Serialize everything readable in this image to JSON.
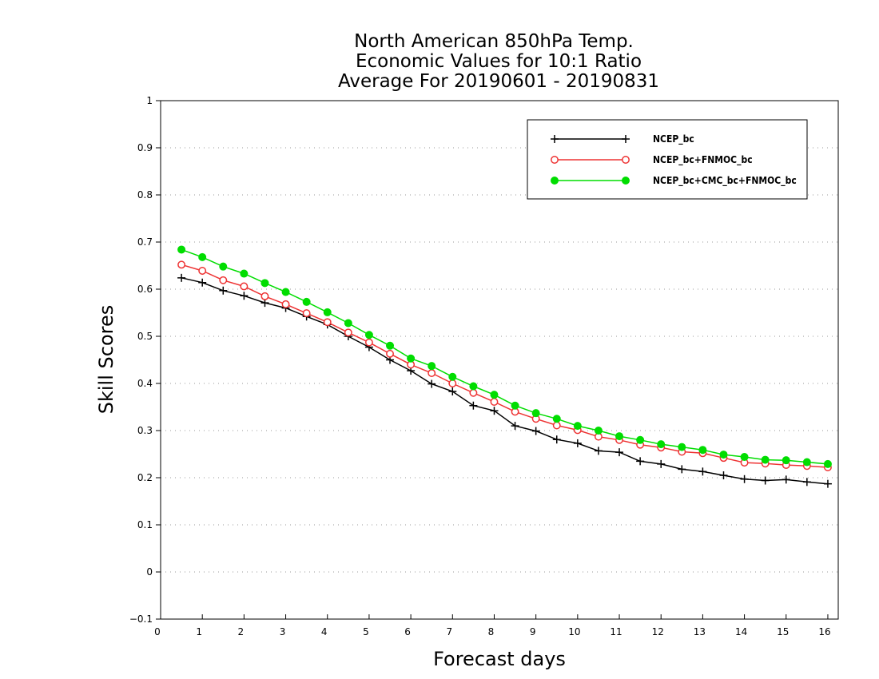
{
  "chart_data": {
    "type": "line",
    "title_lines": [
      "North American 850hPa Temp.",
      "Economic Values for 10:1 Ratio",
      "Average For 20190601 - 20190831"
    ],
    "xlabel": "Forecast days",
    "ylabel": "Skill Scores",
    "xlim": [
      0,
      16.25
    ],
    "ylim": [
      -0.1,
      1
    ],
    "x_ticks": [
      0,
      1,
      2,
      3,
      4,
      5,
      6,
      7,
      8,
      9,
      10,
      11,
      12,
      13,
      14,
      15,
      16
    ],
    "y_ticks": [
      -0.1,
      0,
      0.1,
      0.2,
      0.3,
      0.4,
      0.5,
      0.6,
      0.7,
      0.8,
      0.9,
      1
    ],
    "y_tick_labels": [
      "−0.1",
      "0",
      "0.1",
      "0.2",
      "0.3",
      "0.4",
      "0.5",
      "0.6",
      "0.7",
      "0.8",
      "0.9",
      "1"
    ],
    "grid": "horizontal-dotted",
    "legend_position": "top-right",
    "x": [
      0.5,
      1,
      1.5,
      2,
      2.5,
      3,
      3.5,
      4,
      4.5,
      5,
      5.5,
      6,
      6.5,
      7,
      7.5,
      8,
      8.5,
      9,
      9.5,
      10,
      10.5,
      11,
      11.5,
      12,
      12.5,
      13,
      13.5,
      14,
      14.5,
      15,
      15.5,
      16
    ],
    "series": [
      {
        "name": "NCEP_bc",
        "color": "#000000",
        "marker": "plus",
        "values": [
          0.624,
          0.614,
          0.597,
          0.586,
          0.571,
          0.56,
          0.542,
          0.525,
          0.5,
          0.477,
          0.45,
          0.427,
          0.399,
          0.383,
          0.353,
          0.342,
          0.31,
          0.299,
          0.281,
          0.273,
          0.257,
          0.254,
          0.235,
          0.229,
          0.218,
          0.213,
          0.205,
          0.197,
          0.194,
          0.196,
          0.191,
          0.187
        ]
      },
      {
        "name": "NCEP_bc+FNMOC_bc",
        "color": "#ee3333",
        "marker": "open-circle",
        "values": [
          0.652,
          0.639,
          0.619,
          0.606,
          0.585,
          0.568,
          0.549,
          0.53,
          0.508,
          0.487,
          0.463,
          0.44,
          0.422,
          0.4,
          0.38,
          0.361,
          0.34,
          0.325,
          0.311,
          0.301,
          0.287,
          0.28,
          0.27,
          0.264,
          0.255,
          0.252,
          0.242,
          0.232,
          0.23,
          0.227,
          0.225,
          0.222
        ]
      },
      {
        "name": "NCEP_bc+CMC_bc+FNMOC_bc",
        "color": "#00dd00",
        "marker": "filled-circle",
        "values": [
          0.684,
          0.668,
          0.648,
          0.633,
          0.613,
          0.594,
          0.573,
          0.551,
          0.528,
          0.503,
          0.48,
          0.453,
          0.437,
          0.414,
          0.394,
          0.376,
          0.353,
          0.337,
          0.325,
          0.31,
          0.3,
          0.288,
          0.28,
          0.271,
          0.265,
          0.259,
          0.249,
          0.244,
          0.238,
          0.237,
          0.233,
          0.229
        ]
      }
    ]
  }
}
